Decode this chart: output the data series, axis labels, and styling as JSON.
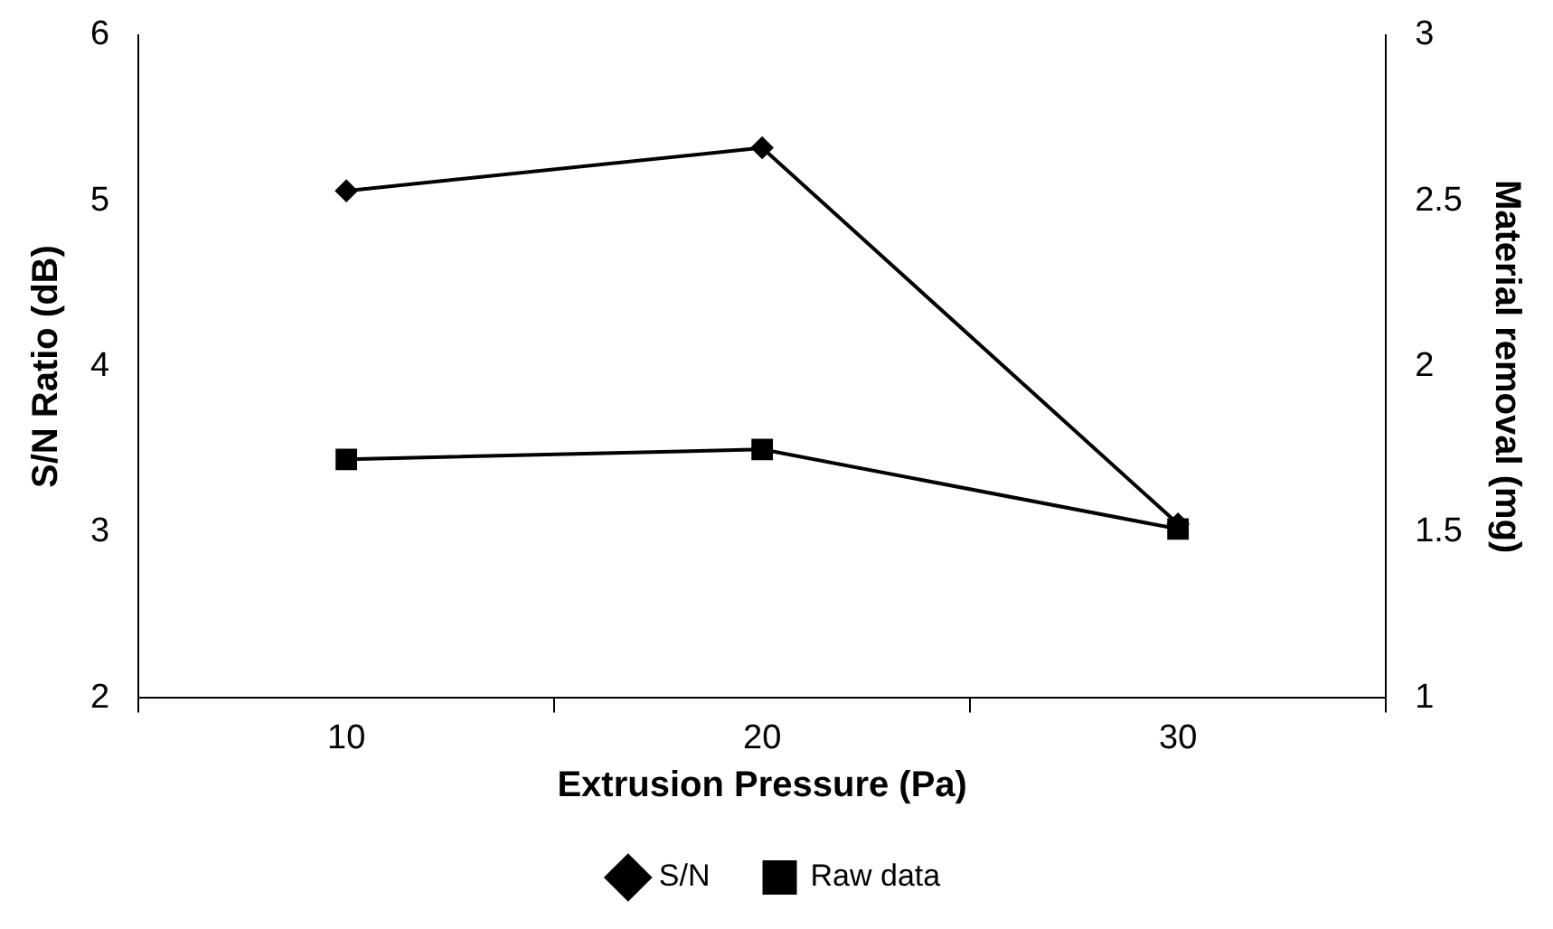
{
  "chart_data": {
    "type": "line",
    "xlabel": "Extrusion Pressure (Pa)",
    "ylabel": "S/N Ratio (dB)",
    "y2label": "Material removal (mg)",
    "categories": [
      "10",
      "20",
      "30"
    ],
    "series": [
      {
        "name": "S/N",
        "color": "#000000",
        "marker": "diamond",
        "values": [
          5.06,
          5.32,
          3.05
        ]
      },
      {
        "name": "Raw data",
        "color": "#000000",
        "marker": "square",
        "axis": "y2",
        "values": [
          1.72,
          1.75,
          1.51
        ]
      }
    ],
    "ylim": [
      2,
      6
    ],
    "yticks": [
      2,
      3,
      4,
      5,
      6
    ],
    "y2lim": [
      1,
      3
    ],
    "y2ticks": [
      1,
      1.5,
      2,
      2.5,
      3
    ],
    "grid": false,
    "legend": "bottom",
    "line_style": "solid"
  }
}
